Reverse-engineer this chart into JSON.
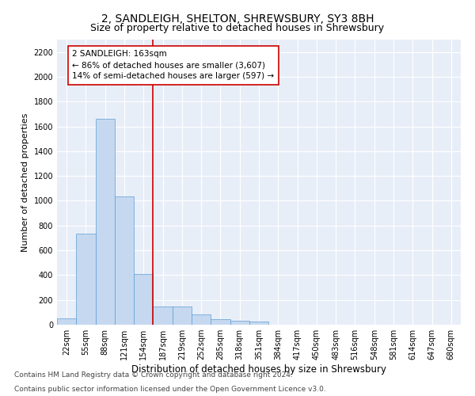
{
  "title": "2, SANDLEIGH, SHELTON, SHREWSBURY, SY3 8BH",
  "subtitle": "Size of property relative to detached houses in Shrewsbury",
  "xlabel": "Distribution of detached houses by size in Shrewsbury",
  "ylabel": "Number of detached properties",
  "categories": [
    "22sqm",
    "55sqm",
    "88sqm",
    "121sqm",
    "154sqm",
    "187sqm",
    "219sqm",
    "252sqm",
    "285sqm",
    "318sqm",
    "351sqm",
    "384sqm",
    "417sqm",
    "450sqm",
    "483sqm",
    "516sqm",
    "548sqm",
    "581sqm",
    "614sqm",
    "647sqm",
    "680sqm"
  ],
  "values": [
    50,
    735,
    1660,
    1035,
    410,
    150,
    150,
    80,
    45,
    35,
    25,
    0,
    0,
    0,
    0,
    0,
    0,
    0,
    0,
    0,
    0
  ],
  "bar_color": "#c5d8f0",
  "bar_edge_color": "#5a9fd4",
  "property_line_x": 4.5,
  "property_line_color": "#cc0000",
  "annotation_text": "2 SANDLEIGH: 163sqm\n← 86% of detached houses are smaller (3,607)\n14% of semi-detached houses are larger (597) →",
  "annotation_box_color": "#ffffff",
  "annotation_box_edge_color": "#cc0000",
  "ylim": [
    0,
    2300
  ],
  "yticks": [
    0,
    200,
    400,
    600,
    800,
    1000,
    1200,
    1400,
    1600,
    1800,
    2000,
    2200
  ],
  "background_color": "#e8eef8",
  "grid_color": "#ffffff",
  "footer_line1": "Contains HM Land Registry data © Crown copyright and database right 2024.",
  "footer_line2": "Contains public sector information licensed under the Open Government Licence v3.0.",
  "title_fontsize": 10,
  "subtitle_fontsize": 9,
  "xlabel_fontsize": 8.5,
  "ylabel_fontsize": 8,
  "tick_fontsize": 7,
  "annotation_fontsize": 7.5,
  "footer_fontsize": 6.5
}
